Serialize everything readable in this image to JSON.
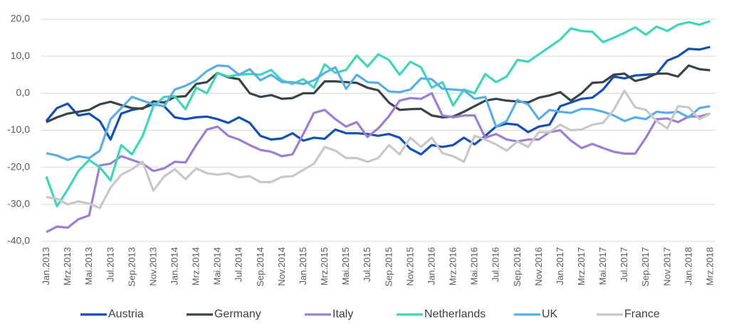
{
  "chart_data": {
    "type": "line",
    "categories": [
      "Jan.2013",
      null,
      "Mrz.2013",
      null,
      "Mai.2013",
      null,
      "Jul.2013",
      null,
      "Sep.2013",
      null,
      "Nov.2013",
      null,
      "Jan.2014",
      null,
      "Mrz.2014",
      null,
      "Mai.2014",
      null,
      "Jul.2014",
      null,
      "Sep.2014",
      null,
      "Nov.2014",
      null,
      "Jan.2015",
      null,
      "Mrz.2015",
      null,
      "Mai.2015",
      null,
      "Jul.2015",
      null,
      "Sep.2015",
      null,
      "Nov.2015",
      null,
      "Jan.2016",
      null,
      "Mrz.2016",
      null,
      "Mai.2016",
      null,
      "Jul.2016",
      null,
      "Sep.2016",
      null,
      "Nov.2016",
      null,
      "Jan.2017",
      null,
      "Mrz.2017",
      null,
      "Mai.2017",
      null,
      "Jul.2017",
      null,
      "Sep.2017",
      null,
      "Nov.2017",
      null,
      "Jan.2018",
      null,
      "Mrz.2018"
    ],
    "series": [
      {
        "name": "Austria",
        "color": "#1450b4",
        "values": [
          -7.5,
          -4,
          -2.8,
          -6,
          -5.5,
          -7.5,
          -12.5,
          -5.5,
          -4.5,
          -4,
          -3,
          -3.5,
          -6.5,
          -7,
          -6.5,
          -6.3,
          -7,
          -8,
          -6.5,
          -8,
          -11.5,
          -12.5,
          -12.2,
          -10.8,
          -12.8,
          -12,
          -12.3,
          -9.8,
          -10.8,
          -10.8,
          -11,
          -11.5,
          -11,
          -12,
          -15,
          -16.5,
          -14,
          -14.5,
          -14,
          -12,
          -13.8,
          -11.5,
          -9,
          -8.2,
          -8.5,
          -10.5,
          -9,
          -8.5,
          -3.5,
          -2.5,
          -1.5,
          -1.2,
          1,
          4.5,
          4,
          4.8,
          5,
          5.2,
          8.8,
          10,
          12,
          11.8,
          12.5
        ]
      },
      {
        "name": "Germany",
        "color": "#3a4448",
        "values": [
          -7.8,
          -6.5,
          -5.5,
          -5,
          -4.5,
          -3,
          -2.3,
          -3.2,
          -4,
          -4.2,
          -2.2,
          -2.5,
          -1,
          -0.8,
          2.5,
          3,
          5.5,
          4.3,
          3.8,
          0,
          -1,
          -0.5,
          -1.5,
          -1.3,
          0,
          0,
          3.2,
          3.2,
          3,
          2.8,
          1.5,
          0.8,
          -2.5,
          -4.5,
          -4.3,
          -4.2,
          -6,
          -6.5,
          -6.3,
          -5,
          -3.5,
          -2,
          -1.5,
          -2,
          -2.2,
          -2.5,
          -1.2,
          -0.6,
          0.3,
          -2,
          0,
          2.8,
          3,
          5,
          5.3,
          3.3,
          4,
          5.3,
          5.3,
          4.5,
          7.5,
          6.5,
          6.2
        ]
      },
      {
        "name": "Italy",
        "color": "#9b7fd4",
        "values": [
          -37.5,
          -36,
          -36.3,
          -34,
          -33,
          -19.5,
          -19,
          -17,
          -18,
          -19,
          -21,
          -20.3,
          -18.5,
          -18.7,
          -14,
          -9.8,
          -9,
          -11.5,
          -12.5,
          -14,
          -15.3,
          -15.8,
          -17,
          -16.5,
          -11,
          -5.3,
          -4.5,
          -7,
          -9,
          -7.8,
          -11.8,
          -9.5,
          -6.2,
          -2,
          -1.3,
          -1.5,
          0,
          -6,
          -6.5,
          -6,
          -6,
          -12,
          -11,
          -12.5,
          -13,
          -12.5,
          -12.5,
          -10.5,
          -10,
          -12.8,
          -14.8,
          -13.7,
          -14.8,
          -15.8,
          -16.3,
          -16.3,
          -12,
          -7,
          -6.8,
          -7.8,
          -6.3,
          -6.3,
          -5.5
        ]
      },
      {
        "name": "Netherlands",
        "color": "#3fd6b8",
        "values": [
          -22.5,
          -30.5,
          -26,
          -21,
          -18,
          -20,
          -23.5,
          -14,
          -16.5,
          -11.5,
          -3.5,
          -1,
          -0.8,
          -4.3,
          1.5,
          0,
          5.5,
          4.5,
          5,
          5.2,
          5,
          6.3,
          3.5,
          2.5,
          3.8,
          1.5,
          7.8,
          5.5,
          6.3,
          10.2,
          7.2,
          10.5,
          9,
          5,
          8.5,
          7,
          1.5,
          3,
          -3.3,
          1,
          0,
          5.2,
          3,
          4.5,
          9,
          8.5,
          10.5,
          12.5,
          14.5,
          17.5,
          16.8,
          16.6,
          13.8,
          15,
          16.3,
          17.8,
          15.8,
          18,
          16.8,
          18.5,
          19.2,
          18.5,
          19.5
        ]
      },
      {
        "name": "UK",
        "color": "#5aaee8",
        "values": [
          -16.2,
          -16.8,
          -18,
          -17,
          -17.5,
          -15.5,
          -7,
          -4,
          -1,
          -2,
          -3,
          -3.5,
          1,
          2,
          3.5,
          6,
          7.5,
          7.3,
          5,
          6.5,
          3.5,
          5,
          3,
          3,
          2.5,
          3.5,
          5.5,
          7,
          1.2,
          5,
          3,
          2.8,
          0.5,
          0.3,
          1,
          4,
          3.8,
          1.2,
          1,
          0.8,
          -1.5,
          -1,
          -9,
          -7.5,
          -1.8,
          -3,
          -7,
          -4.5,
          -5,
          -5.3,
          -4.2,
          -4.3,
          -5,
          -6,
          -7.5,
          -6.5,
          -7,
          -5,
          -5.3,
          -5,
          -6.5,
          -4,
          -3.5
        ]
      },
      {
        "name": "France",
        "color": "#c8c8c8",
        "values": [
          -28,
          -28.5,
          -30,
          -29.2,
          -29.8,
          -31,
          -25.5,
          -22,
          -20.5,
          -18.5,
          -26.3,
          -22.5,
          -20.5,
          -23.2,
          -20.3,
          -21.6,
          -22,
          -21.6,
          -22.7,
          -22.4,
          -24,
          -24,
          -22.6,
          -22.4,
          -20.7,
          -19,
          -14.5,
          -15.5,
          -17.5,
          -17.5,
          -18.5,
          -17.5,
          -14,
          -16.5,
          -12,
          -14.5,
          -12,
          -16.2,
          -17,
          -18.5,
          -11.5,
          -12.5,
          -13.8,
          -15.5,
          -13,
          -14.5,
          -10.5,
          -10.5,
          -8.5,
          -10,
          -9.8,
          -8.5,
          -8,
          -4.5,
          0.7,
          -3.8,
          -4.5,
          -7.5,
          -9.5,
          -3.5,
          -3.8,
          -7,
          -5.5
        ]
      }
    ],
    "ylim": [
      -40,
      20
    ],
    "yticks": [
      {
        "value": -40,
        "label": "-40,0"
      },
      {
        "value": -30,
        "label": "-30,0"
      },
      {
        "value": -20,
        "label": "-20,0"
      },
      {
        "value": -10,
        "label": "-10,0"
      },
      {
        "value": 0,
        "label": "0,0"
      },
      {
        "value": 10,
        "label": "10,0"
      },
      {
        "value": 20,
        "label": "20,0"
      }
    ],
    "grid": true,
    "legend": "bottom"
  }
}
